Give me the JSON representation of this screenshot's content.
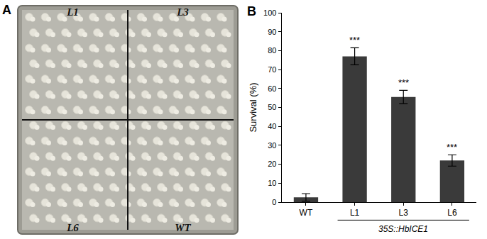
{
  "panel_a": {
    "label": "A",
    "quadrant_labels": [
      "L1",
      "L3",
      "L6",
      "WT"
    ]
  },
  "panel_b_label": "B",
  "chart_data": {
    "type": "bar",
    "categories": [
      "WT",
      "L1",
      "L3",
      "L6"
    ],
    "values": [
      2.5,
      77,
      55.5,
      22
    ],
    "errors": [
      2,
      4.5,
      3.5,
      3
    ],
    "color": "#3a3a3a",
    "y_label": "Survival (%)",
    "group_label": {
      "text": "35S::HbICE1",
      "categories": [
        "L1",
        "L3",
        "L6"
      ]
    },
    "annotations": [
      {
        "category": "L1",
        "text": "***"
      },
      {
        "category": "L3",
        "text": "***"
      },
      {
        "category": "L6",
        "text": "***"
      }
    ],
    "ylim": [
      0,
      100
    ],
    "yticks": [
      0,
      10,
      20,
      30,
      40,
      50,
      60,
      70,
      80,
      90,
      100
    ],
    "grid": false
  }
}
